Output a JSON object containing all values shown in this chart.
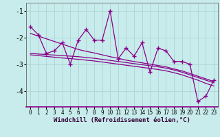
{
  "xlabel": "Windchill (Refroidissement éolien,°C)",
  "bg_color": "#c8ecec",
  "grid_color": "#b0d8d8",
  "line_color": "#880088",
  "x_data": [
    0,
    1,
    2,
    3,
    4,
    5,
    6,
    7,
    8,
    9,
    10,
    11,
    12,
    13,
    14,
    15,
    16,
    17,
    18,
    19,
    20,
    21,
    22,
    23
  ],
  "y_main": [
    -1.6,
    -1.9,
    -2.6,
    -2.5,
    -2.2,
    -3.0,
    -2.1,
    -1.7,
    -2.1,
    -2.1,
    -1.0,
    -2.8,
    -2.4,
    -2.7,
    -2.2,
    -3.3,
    -2.4,
    -2.5,
    -2.9,
    -2.9,
    -3.0,
    -4.4,
    -4.2,
    -3.6
  ],
  "y_trend1": [
    -1.85,
    -1.95,
    -2.05,
    -2.15,
    -2.25,
    -2.35,
    -2.45,
    -2.52,
    -2.58,
    -2.65,
    -2.72,
    -2.78,
    -2.85,
    -2.9,
    -2.95,
    -3.0,
    -3.05,
    -3.1,
    -3.18,
    -3.25,
    -3.35,
    -3.45,
    -3.55,
    -3.65
  ],
  "y_trend2": [
    -2.6,
    -2.62,
    -2.64,
    -2.66,
    -2.68,
    -2.7,
    -2.72,
    -2.75,
    -2.78,
    -2.82,
    -2.86,
    -2.9,
    -2.94,
    -2.98,
    -3.02,
    -3.06,
    -3.1,
    -3.15,
    -3.22,
    -3.3,
    -3.4,
    -3.5,
    -3.6,
    -3.7
  ],
  "y_trend3": [
    -2.65,
    -2.68,
    -2.71,
    -2.74,
    -2.77,
    -2.79,
    -2.82,
    -2.85,
    -2.88,
    -2.92,
    -2.96,
    -3.0,
    -3.04,
    -3.08,
    -3.12,
    -3.16,
    -3.2,
    -3.25,
    -3.32,
    -3.4,
    -3.5,
    -3.6,
    -3.72,
    -3.82
  ],
  "ylim": [
    -4.6,
    -0.7
  ],
  "xlim": [
    -0.5,
    23.5
  ],
  "yticks": [
    -4,
    -3,
    -2,
    -1
  ],
  "xticks": [
    0,
    1,
    2,
    3,
    4,
    5,
    6,
    7,
    8,
    9,
    10,
    11,
    12,
    13,
    14,
    15,
    16,
    17,
    18,
    19,
    20,
    21,
    22,
    23
  ]
}
